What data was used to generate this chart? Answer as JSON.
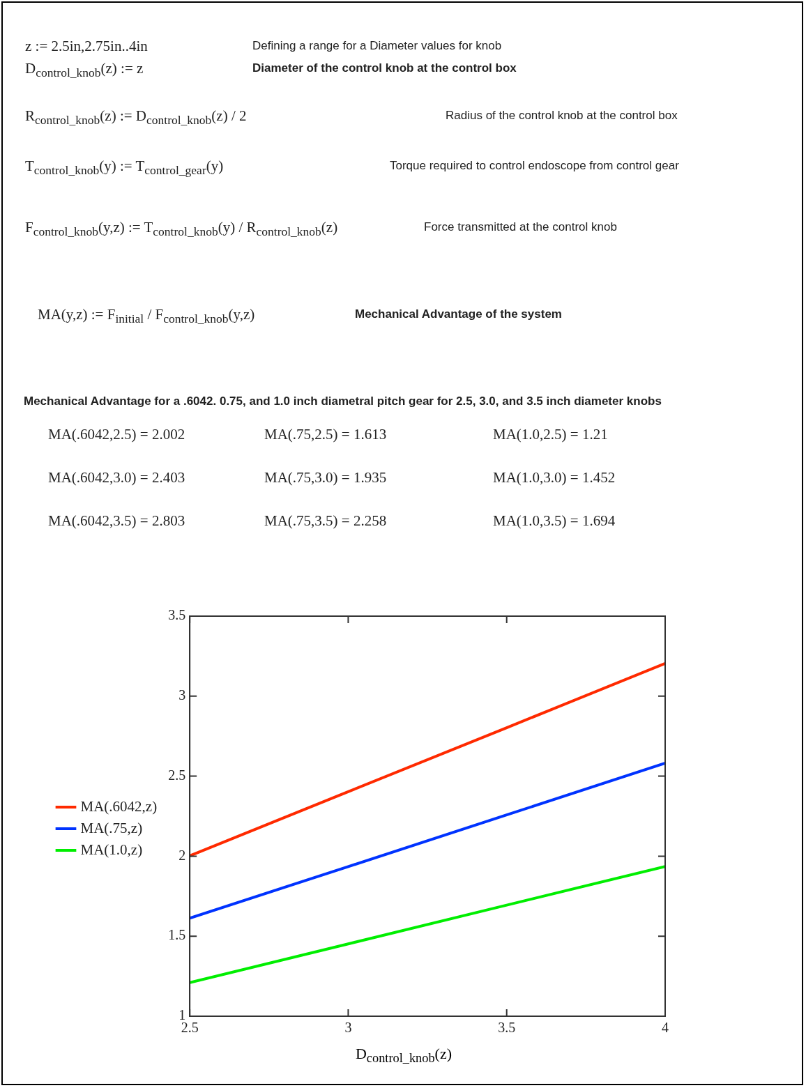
{
  "chart_data": {
    "type": "line",
    "title": "Mechanical Advantage for a .6042. 0.75, and 1.0 inch diametral pitch gear for 2.5, 3.0, and 3.5 inch diameter knobs",
    "annotations": [
      "z := 2.5in,2.75in..4in",
      "Defining a range for a Diameter values for knob",
      "D$_{control_knob}$(z) := z",
      "Diameter of the control knob at the control box",
      "R$_{control_knob}$(z) := D$_{control_knob}$(z) / 2",
      "Radius of the control knob at the control box",
      "T$_{control_knob}$(y) := T$_{control_gear}$(y)",
      "Torque required to control endoscope from control gear",
      "F$_{control_knob}$(y,z) := T$_{control_knob}$(y) / R$_{control_knob}$(z)",
      "Force transmitted at the control knob",
      "MA(y,z) := F$_{initial}$ / F$_{control_knob}$(y,z)",
      "Mechanical Advantage of the system",
      "MA(.6042,2.5) = 2.002",
      "MA(.75,2.5) = 1.613",
      "MA(1.0,2.5) = 1.21",
      "MA(.6042,3.0) = 2.403",
      "MA(.75,3.0) = 1.935",
      "MA(1.0,3.0) = 1.452",
      "MA(.6042,3.5) = 2.803",
      "MA(.75,3.5) = 2.258",
      "MA(1.0,3.5) = 1.694"
    ],
    "xlabel": "D$_{control_knob}$(z)",
    "x": [
      2.5,
      3,
      3.5,
      4
    ],
    "series": [
      {
        "name": "MA(.6042,z)",
        "color": "#ff2a00",
        "values": [
          2.002,
          2.403,
          2.803,
          3.204
        ]
      },
      {
        "name": "MA(.75,z)",
        "color": "#0033ff",
        "values": [
          1.613,
          1.935,
          2.258,
          2.581
        ]
      },
      {
        "name": "MA(1.0,z)",
        "color": "#00ee00",
        "values": [
          1.21,
          1.452,
          1.694,
          1.936
        ]
      }
    ],
    "xlim": [
      2.5,
      4
    ],
    "xticks": [
      2.5,
      3,
      3.5,
      4
    ],
    "ylim": [
      1,
      3.5
    ],
    "yticks": [
      1,
      1.5,
      2,
      2.5,
      3,
      3.5
    ],
    "grid": false,
    "legend": "left",
    "marker": "none",
    "line_style": "solid"
  }
}
